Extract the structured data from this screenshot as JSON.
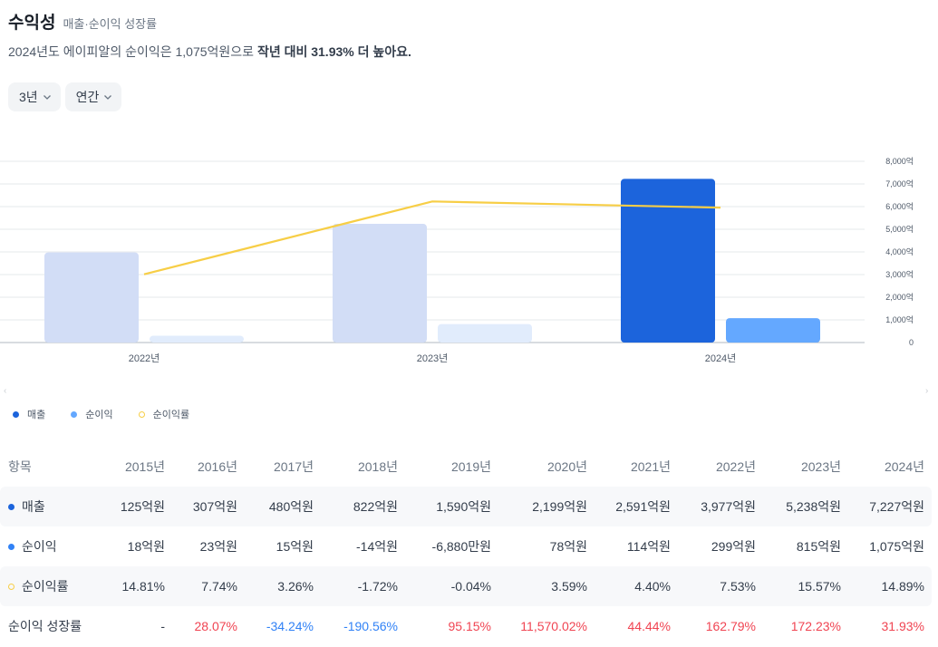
{
  "header": {
    "title": "수익성",
    "subtitle": "매출·순이익 성장률",
    "summary_prefix": "2024년도 에이피알의 순이익은 1,075억원으로 ",
    "summary_bold": "작년 대비 31.93% 더 높아요."
  },
  "filters": {
    "period": "3년",
    "frequency": "연간"
  },
  "colors": {
    "revenue": "#1c64dc",
    "revenue_faded": "#d2ddf6",
    "profit": "#64a8ff",
    "profit_faded": "#e1ecfc",
    "margin_line": "#f7ce46",
    "positive": "#f04452",
    "negative": "#3182f6"
  },
  "chart_data": {
    "type": "bar",
    "categories": [
      "2022년",
      "2023년",
      "2024년"
    ],
    "series": [
      {
        "name": "매출",
        "values": [
          3977,
          5238,
          7227
        ],
        "unit": "억원"
      },
      {
        "name": "순이익",
        "values": [
          299,
          815,
          1075
        ],
        "unit": "억원"
      },
      {
        "name": "순이익률",
        "type": "line",
        "values": [
          7.53,
          15.57,
          14.89
        ],
        "unit": "%"
      }
    ],
    "highlighted_category": "2024년",
    "y_ticks": [
      "0",
      "1,000억",
      "2,000억",
      "3,000억",
      "4,000억",
      "5,000억",
      "6,000억",
      "7,000억",
      "8,000억"
    ],
    "ylim": [
      0,
      8000
    ],
    "y2lim": [
      0,
      20
    ],
    "legend": [
      {
        "label": "매출",
        "marker": "dot",
        "color": "#1c64dc"
      },
      {
        "label": "순이익",
        "marker": "dot",
        "color": "#64a8ff"
      },
      {
        "label": "순이익률",
        "marker": "ring",
        "color": "#f7ce46"
      }
    ]
  },
  "table": {
    "label_header": "항목",
    "years": [
      "2015년",
      "2016년",
      "2017년",
      "2018년",
      "2019년",
      "2020년",
      "2021년",
      "2022년",
      "2023년",
      "2024년"
    ],
    "rows": [
      {
        "label": "매출",
        "marker": "dot",
        "color": "#1c64dc",
        "values": [
          "125억원",
          "307억원",
          "480억원",
          "822억원",
          "1,590억원",
          "2,199억원",
          "2,591억원",
          "3,977억원",
          "5,238억원",
          "7,227억원"
        ]
      },
      {
        "label": "순이익",
        "marker": "dot",
        "color": "#3182f6",
        "values": [
          "18억원",
          "23억원",
          "15억원",
          "-14억원",
          "-6,880만원",
          "78억원",
          "114억원",
          "299억원",
          "815억원",
          "1,075억원"
        ]
      },
      {
        "label": "순이익률",
        "marker": "ring",
        "color": "#f7ce46",
        "values": [
          "14.81%",
          "7.74%",
          "3.26%",
          "-1.72%",
          "-0.04%",
          "3.59%",
          "4.40%",
          "7.53%",
          "15.57%",
          "14.89%"
        ]
      },
      {
        "label": "순이익 성장률",
        "marker": "none",
        "color": "",
        "values": [
          "-",
          "28.07%",
          "-34.24%",
          "-190.56%",
          "95.15%",
          "11,570.02%",
          "44.44%",
          "162.79%",
          "172.23%",
          "31.93%"
        ]
      }
    ]
  }
}
